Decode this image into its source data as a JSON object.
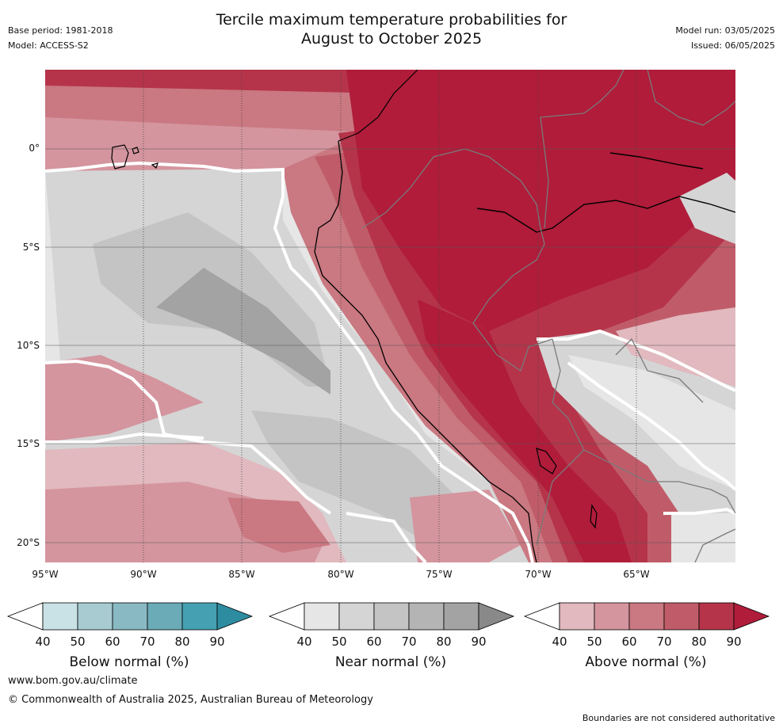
{
  "header": {
    "title_line1": "Tercile maximum temperature probabilities for",
    "title_line2": "August to October 2025",
    "base_period": "Base period: 1981-2018",
    "model": "Model: ACCESS-S2",
    "model_run": "Model run: 03/05/2025",
    "issued": "Issued: 06/05/2025"
  },
  "map": {
    "lat_labels": [
      "0°",
      "5°S",
      "10°S",
      "15°S",
      "20°S"
    ],
    "lon_labels": [
      "95°W",
      "90°W",
      "85°W",
      "80°W",
      "75°W",
      "70°W",
      "65°W"
    ]
  },
  "legend": {
    "below": {
      "label": "Below normal (%)",
      "ticks": [
        "40",
        "50",
        "60",
        "70",
        "80",
        "90"
      ],
      "colors": [
        "#ffffff",
        "#c9e2e6",
        "#a7cbd1",
        "#89b9c3",
        "#6aabb7",
        "#45a1b1",
        "#2e8ca1"
      ]
    },
    "near": {
      "label": "Near normal (%)",
      "ticks": [
        "40",
        "50",
        "60",
        "70",
        "80",
        "90"
      ],
      "colors": [
        "#ffffff",
        "#e6e6e6",
        "#d5d5d5",
        "#c4c4c4",
        "#b4b4b4",
        "#a3a3a3",
        "#898989"
      ]
    },
    "above": {
      "label": "Above normal (%)",
      "ticks": [
        "40",
        "50",
        "60",
        "70",
        "80",
        "90"
      ],
      "colors": [
        "#ffffff",
        "#e1b9be",
        "#d4959e",
        "#ca7881",
        "#c05c69",
        "#b5344a",
        "#b01c3a"
      ]
    }
  },
  "footer": {
    "url": "www.bom.gov.au/climate",
    "copyright": "© Commonwealth of Australia 2025, Australian Bureau of Meteorology",
    "disclaimer": "Boundaries are not considered authoritative"
  }
}
